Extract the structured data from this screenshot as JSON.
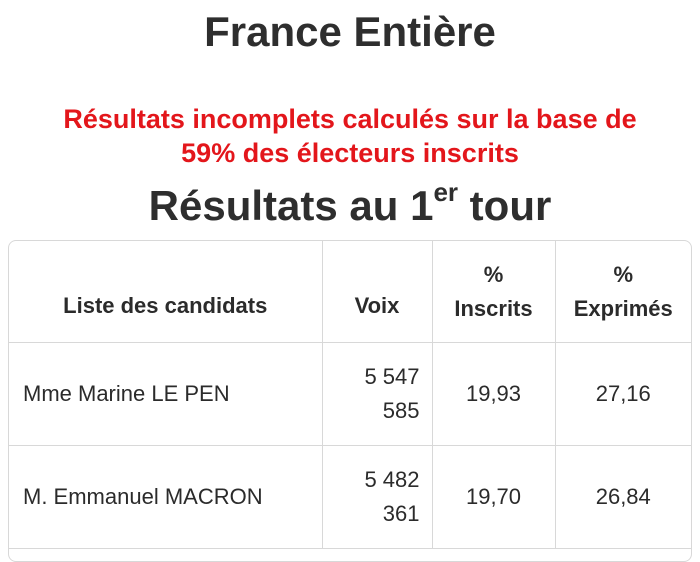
{
  "title": "France Entière",
  "warning": [
    "Résultats incomplets calculés sur la base de",
    "59% des électeurs inscrits"
  ],
  "round": {
    "prefix": "Résultats au 1",
    "sup": "er",
    "suffix": " tour"
  },
  "table": {
    "headers": {
      "name": "Liste des candidats",
      "voix": "Voix",
      "inscrits": [
        "%",
        "Inscrits"
      ],
      "exprimes": [
        "%",
        "Exprimés"
      ]
    },
    "rows": [
      {
        "name": "Mme Marine LE PEN",
        "voix": [
          "5 547",
          "585"
        ],
        "inscrits": "19,93",
        "exprimes": "27,16"
      },
      {
        "name": "M. Emmanuel MACRON",
        "voix": [
          "5 482",
          "361"
        ],
        "inscrits": "19,70",
        "exprimes": "26,84"
      }
    ]
  }
}
